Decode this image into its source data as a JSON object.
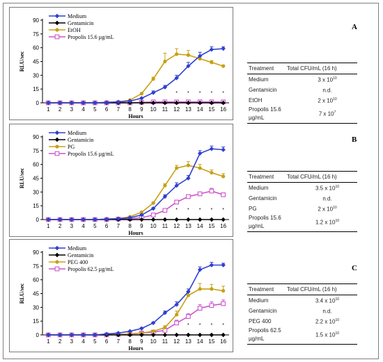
{
  "colors": {
    "Medium": "#2f3fcf",
    "Gentamicin": "#000000",
    "vehicle": "#c8a015",
    "Propolis": "#cc55cc"
  },
  "chart_data": [
    {
      "type": "line",
      "panel_label": "A",
      "ylabel": "RLU/sec",
      "xlabel": "Hours",
      "x": [
        1,
        2,
        3,
        4,
        5,
        6,
        7,
        8,
        9,
        10,
        11,
        12,
        13,
        14,
        15,
        16
      ],
      "ylim": [
        0,
        90
      ],
      "yticks": [
        0,
        15,
        30,
        45,
        60,
        75,
        90
      ],
      "series": [
        {
          "name": "Medium",
          "key": "Medium",
          "values": [
            0,
            0,
            0,
            0,
            0,
            0.5,
            1,
            2,
            5,
            11,
            17,
            27,
            40,
            51,
            58,
            59
          ],
          "err": [
            0,
            0,
            0,
            0,
            0,
            0,
            0,
            0.5,
            1,
            2,
            2,
            3,
            4,
            4,
            3,
            2
          ]
        },
        {
          "name": "Gentamicin",
          "key": "Gentamicin",
          "values": [
            0,
            0,
            0,
            0,
            0,
            0,
            0,
            0,
            0,
            0,
            0,
            0,
            0,
            0,
            0,
            0
          ],
          "err": [
            0,
            0,
            0,
            0,
            0,
            0,
            0,
            0,
            0,
            0,
            0,
            0,
            0,
            0,
            0,
            0
          ]
        },
        {
          "name": "EtOH",
          "key": "vehicle",
          "values": [
            0,
            0,
            0,
            0,
            0,
            0.5,
            1,
            3,
            10,
            26,
            45,
            53,
            52,
            48,
            44,
            40
          ],
          "err": [
            0,
            0,
            0,
            0,
            0,
            0,
            0,
            0.5,
            1,
            2,
            9,
            6,
            5,
            3,
            2,
            1
          ]
        },
        {
          "name": "Propolis 15.6 µg/mL",
          "key": "Propolis",
          "values": [
            0,
            0,
            0,
            0,
            0,
            0,
            0,
            0,
            0.5,
            1,
            1,
            1,
            1,
            1,
            1,
            1
          ],
          "err": [
            0,
            0,
            0,
            0,
            0,
            0,
            0,
            0,
            0,
            0,
            0,
            0,
            0,
            0,
            0,
            0
          ]
        }
      ],
      "stars": [
        12,
        13,
        14,
        15,
        16
      ]
    },
    {
      "type": "line",
      "panel_label": "B",
      "ylabel": "RLU/sec",
      "xlabel": "Hours",
      "x": [
        1,
        2,
        3,
        4,
        5,
        6,
        7,
        8,
        9,
        10,
        11,
        12,
        13,
        14,
        15,
        16
      ],
      "ylim": [
        0,
        90
      ],
      "yticks": [
        0,
        15,
        30,
        45,
        60,
        75,
        90
      ],
      "series": [
        {
          "name": "Medium",
          "key": "Medium",
          "values": [
            0,
            0,
            0,
            0,
            0,
            0.5,
            1,
            2,
            5,
            12,
            25,
            37,
            45,
            72,
            77,
            76
          ],
          "err": [
            0,
            0,
            0,
            0,
            0,
            0,
            0,
            0.5,
            1,
            1,
            2,
            3,
            3,
            3,
            3,
            3
          ]
        },
        {
          "name": "Gentamicin",
          "key": "Gentamicin",
          "values": [
            0,
            0,
            0,
            0,
            0,
            0,
            0,
            0,
            0,
            0,
            0,
            0,
            0,
            0,
            0,
            0
          ],
          "err": [
            0,
            0,
            0,
            0,
            0,
            0,
            0,
            0,
            0,
            0,
            0,
            0,
            0,
            0,
            0,
            0
          ]
        },
        {
          "name": "PG",
          "key": "vehicle",
          "values": [
            0,
            0,
            0,
            0,
            0,
            0.5,
            1,
            3,
            8,
            18,
            37,
            56,
            59,
            56,
            51,
            47
          ],
          "err": [
            0,
            0,
            0,
            0,
            0,
            0,
            0,
            0.5,
            1,
            1,
            2,
            3,
            4,
            4,
            3,
            3
          ]
        },
        {
          "name": "Propolis 15.6 µg/mL",
          "key": "Propolis",
          "values": [
            0,
            0,
            0,
            0,
            0,
            0,
            0.5,
            1,
            2,
            5,
            10,
            19,
            25,
            28,
            31,
            27
          ],
          "err": [
            0,
            0,
            0,
            0,
            0,
            0,
            0,
            0,
            0.5,
            1,
            1,
            2,
            2,
            2,
            3,
            2
          ]
        }
      ],
      "stars": [
        12,
        13,
        14,
        15,
        16
      ]
    },
    {
      "type": "line",
      "panel_label": "C",
      "ylabel": "RLU/sec",
      "xlabel": "Hours",
      "x": [
        1,
        2,
        3,
        4,
        5,
        6,
        7,
        8,
        9,
        10,
        11,
        12,
        13,
        14,
        15,
        16
      ],
      "ylim": [
        0,
        90
      ],
      "yticks": [
        0,
        15,
        30,
        45,
        60,
        75,
        90
      ],
      "series": [
        {
          "name": "Medium",
          "key": "Medium",
          "values": [
            0,
            0,
            0,
            0,
            0,
            1,
            2,
            4,
            7,
            13,
            24,
            33,
            47,
            71,
            76,
            76
          ],
          "err": [
            0,
            0,
            0,
            0,
            0,
            0,
            0,
            0.5,
            1,
            1,
            2,
            3,
            3,
            3,
            3,
            2
          ]
        },
        {
          "name": "Gentamicin",
          "key": "Gentamicin",
          "values": [
            0,
            0,
            0,
            0,
            0,
            0,
            0,
            0,
            0,
            0,
            0,
            0,
            0,
            0,
            0,
            0
          ],
          "err": [
            0,
            0,
            0,
            0,
            0,
            0,
            0,
            0,
            0,
            0,
            0,
            0,
            0,
            0,
            0,
            0
          ]
        },
        {
          "name": "PEG 400",
          "key": "vehicle",
          "values": [
            0,
            0,
            0,
            0,
            0,
            0,
            0.5,
            1,
            2,
            4,
            8,
            22,
            43,
            50,
            50,
            48
          ],
          "err": [
            0,
            0,
            0,
            0,
            0,
            0,
            0,
            0,
            0.5,
            1,
            2,
            4,
            5,
            6,
            5,
            5
          ]
        },
        {
          "name": "Propolis 62.5  µg/mL",
          "key": "Propolis",
          "values": [
            0,
            0,
            0,
            0,
            0,
            0,
            0.5,
            1,
            2,
            3,
            5,
            13,
            20,
            29,
            32,
            34
          ],
          "err": [
            0,
            0,
            0,
            0,
            0,
            0,
            0,
            0,
            0.5,
            1,
            1,
            3,
            3,
            4,
            4,
            4
          ]
        }
      ],
      "stars": [
        13,
        14,
        15,
        16
      ]
    }
  ],
  "tables": [
    {
      "header": [
        "Treatment",
        "Total CFU/mL (16 h)"
      ],
      "rows": [
        {
          "t": "Medium",
          "mant": "3 x 10",
          "exp": "10"
        },
        {
          "t": "Gentamicin",
          "mant": "n.d.",
          "exp": ""
        },
        {
          "t": "EtOH",
          "mant": "2 x 10",
          "exp": "10"
        },
        {
          "t": "Propolis 15.6 µg/mL",
          "mant": "7 x 10",
          "exp": "7"
        }
      ]
    },
    {
      "header": [
        "Treatment",
        "Total CFU/mL (16 h)"
      ],
      "rows": [
        {
          "t": "Medium",
          "mant": "3.5 x 10",
          "exp": "10"
        },
        {
          "t": "Gentamicin",
          "mant": "n.d.",
          "exp": ""
        },
        {
          "t": "PG",
          "mant": "2 x 10",
          "exp": "10"
        },
        {
          "t": "Propolis 15.6 µg/mL",
          "mant": "1.2 x 10",
          "exp": "10"
        }
      ]
    },
    {
      "header": [
        "Treatment",
        "Total CFU/mL (16 h)"
      ],
      "rows": [
        {
          "t": "Medium",
          "mant": "3.4 x 10",
          "exp": "10"
        },
        {
          "t": "Gentamicin",
          "mant": "n.d.",
          "exp": ""
        },
        {
          "t": "PEG 400",
          "mant": "2.2 x 10",
          "exp": "10"
        },
        {
          "t": "Propolis 62.5 µg/mL",
          "mant": "1.5 x 10",
          "exp": "10"
        }
      ]
    }
  ]
}
